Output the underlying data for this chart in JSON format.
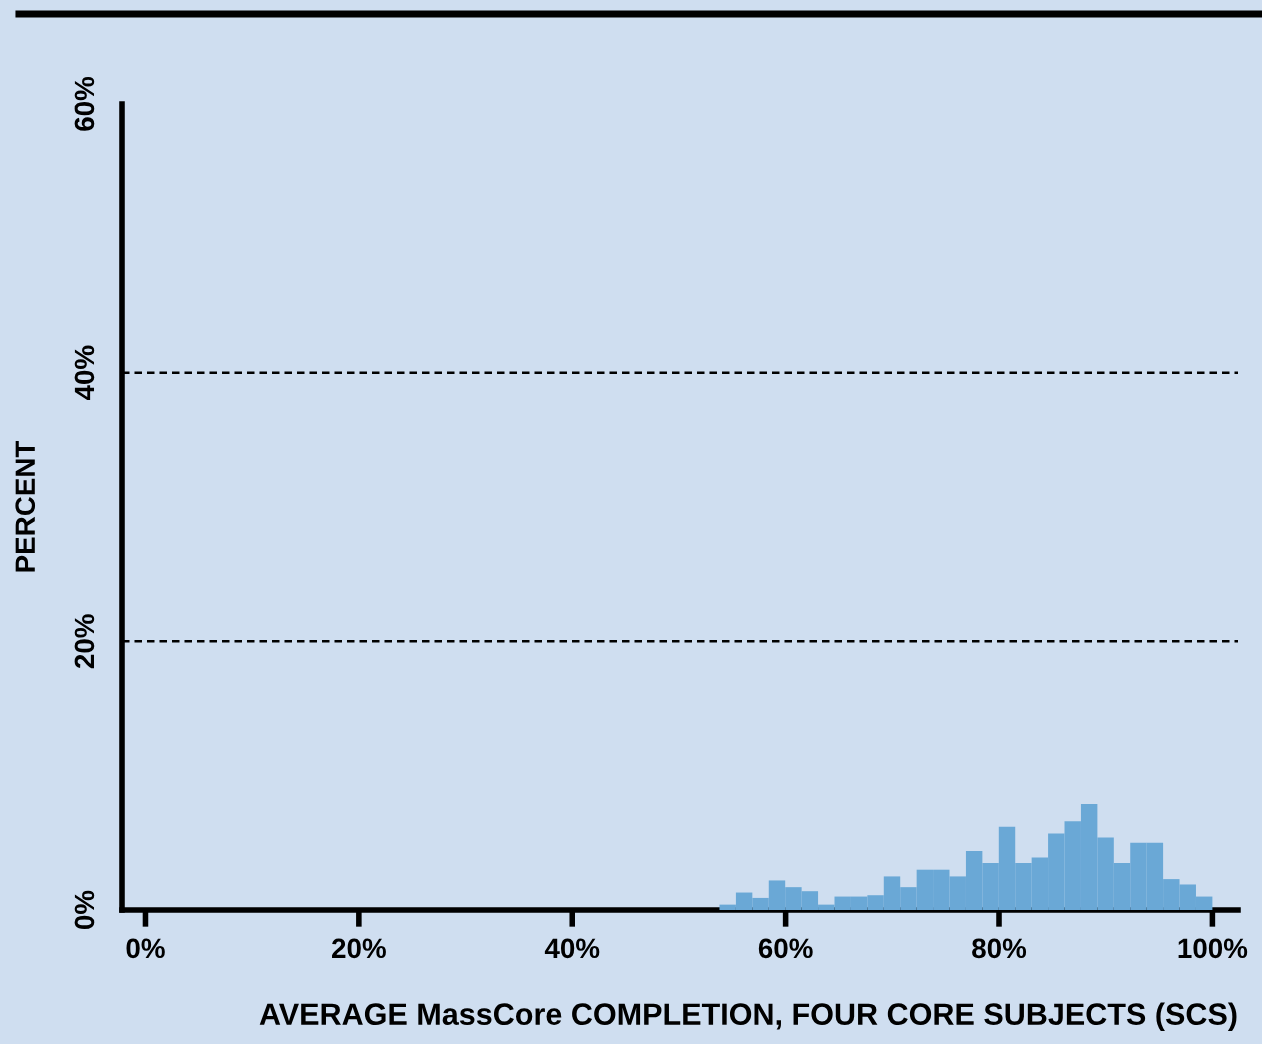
{
  "chart_data": {
    "type": "histogram",
    "xlabel": "AVERAGE MassCore COMPLETION, FOUR CORE SUBJECTS (SCS)",
    "ylabel": "PERCENT",
    "bins": [
      53.8,
      55.34,
      56.88,
      58.42,
      59.96,
      61.5,
      63.04,
      64.58,
      66.12,
      67.66,
      69.2,
      70.74,
      72.28,
      73.82,
      75.36,
      76.9,
      78.44,
      79.98,
      81.52,
      83.06,
      84.6,
      86.14,
      87.68,
      89.22,
      90.76,
      92.3,
      93.84,
      95.38,
      96.92,
      98.46,
      100
    ],
    "values": [
      0.4,
      1.3,
      0.9,
      2.2,
      1.7,
      1.4,
      0.4,
      1.0,
      1.0,
      1.1,
      2.5,
      1.7,
      3.0,
      3.0,
      2.5,
      4.4,
      3.5,
      6.2,
      3.5,
      3.9,
      5.7,
      6.6,
      7.9,
      5.4,
      3.5,
      5.0,
      5.0,
      2.3,
      1.9,
      1.0
    ],
    "color": "#6aa8d6",
    "xlim": [
      -2.2,
      102.4
    ],
    "ylim": [
      0,
      60
    ],
    "xticks": [
      {
        "value": 0,
        "label": "0%"
      },
      {
        "value": 20,
        "label": "20%"
      },
      {
        "value": 40,
        "label": "40%"
      },
      {
        "value": 60,
        "label": "60%"
      },
      {
        "value": 80,
        "label": "80%"
      },
      {
        "value": 100,
        "label": "100%"
      }
    ],
    "yticks": [
      {
        "value": 0,
        "label": "0%"
      },
      {
        "value": 20,
        "label": "20%"
      },
      {
        "value": 40,
        "label": "40%"
      },
      {
        "value": 60,
        "label": "60%"
      }
    ],
    "grid": "y",
    "line_style": "dashed"
  }
}
